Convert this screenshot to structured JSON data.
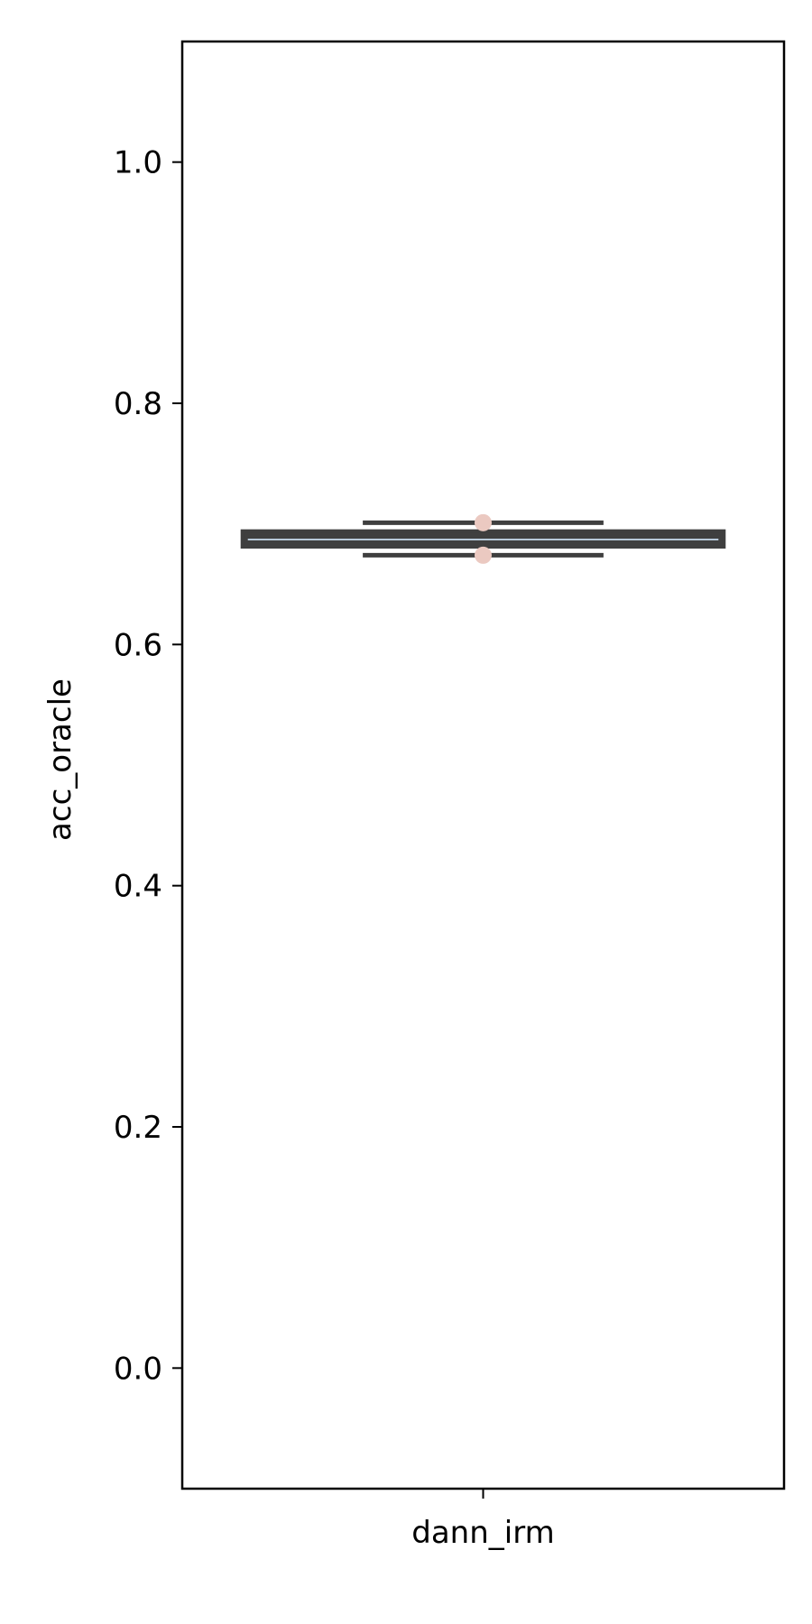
{
  "chart_data": {
    "type": "box",
    "title": "",
    "xlabel": "",
    "ylabel": "acc_oracle",
    "categories": [
      "dann_irm"
    ],
    "ylim": [
      -0.1,
      1.1
    ],
    "yticks": [
      0.0,
      0.2,
      0.4,
      0.6,
      0.8,
      1.0
    ],
    "ytick_labels": [
      "0.0",
      "0.2",
      "0.4",
      "0.6",
      "0.8",
      "1.0"
    ],
    "grid": false,
    "legend": "none",
    "boxes": [
      {
        "category": "dann_irm",
        "q1": 0.681,
        "median": 0.687,
        "q3": 0.694,
        "whisker_low": 0.674,
        "whisker_high": 0.701,
        "points": [
          0.701,
          0.674
        ]
      }
    ],
    "colors": {
      "box_edge": "#3f3f3f",
      "box_fill": "#3f3f3f",
      "median_line": "#b7c9d9",
      "whisker": "#3f3f3f",
      "point": "#ebc9c1",
      "axis": "#000000"
    }
  }
}
